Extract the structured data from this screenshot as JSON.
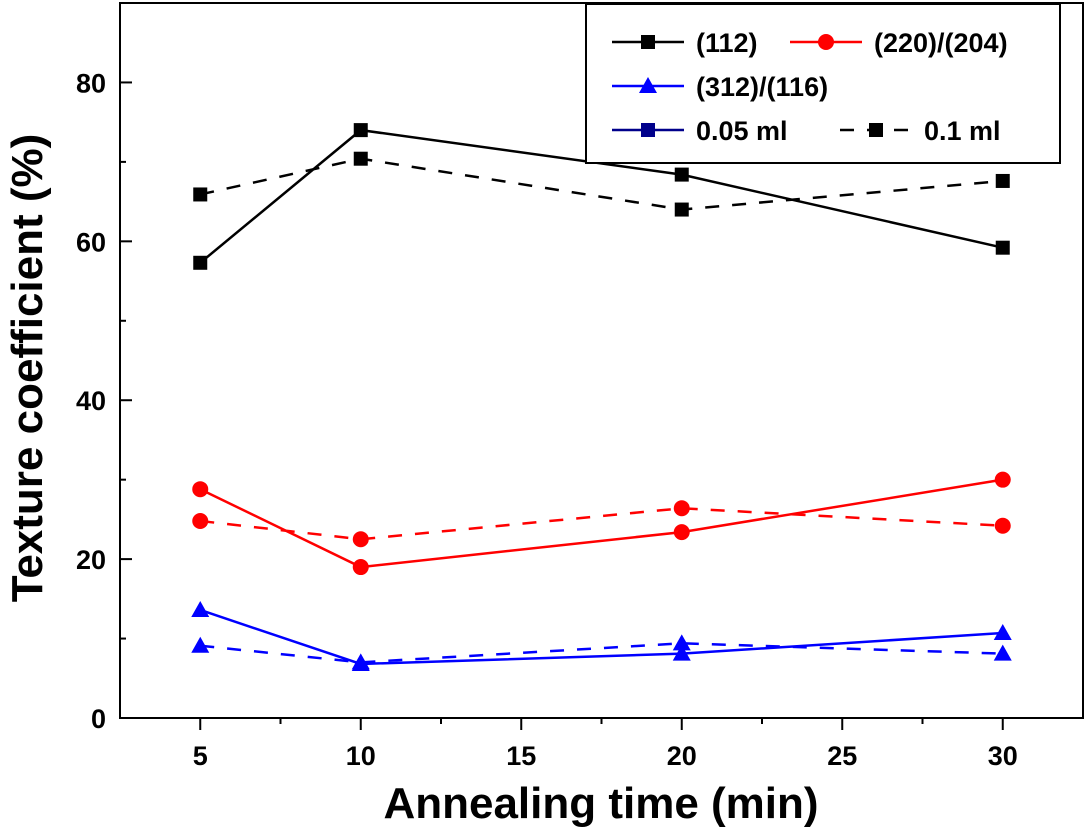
{
  "chart_data": {
    "type": "line",
    "xlabel": "Annealing time (min)",
    "ylabel": "Texture coefficient (%)",
    "xlim": [
      2.5,
      32.5
    ],
    "ylim": [
      0,
      90
    ],
    "xticks": [
      5,
      10,
      15,
      20,
      25,
      30
    ],
    "yticks": [
      0,
      20,
      40,
      60,
      80
    ],
    "x": [
      5,
      10,
      20,
      30
    ],
    "grid": false,
    "legend_position": "top-right",
    "series": [
      {
        "name": "(112)",
        "group": "0.05 ml",
        "color": "#000000",
        "marker": "square",
        "dash": "solid",
        "values": [
          57.3,
          74.0,
          68.4,
          59.2
        ]
      },
      {
        "name": "(112)",
        "group": "0.1 ml",
        "color": "#000000",
        "marker": "square",
        "dash": "dashed",
        "values": [
          65.9,
          70.4,
          64.0,
          67.6
        ]
      },
      {
        "name": "(220)/(204)",
        "group": "0.05 ml",
        "color": "#ff0000",
        "marker": "circle",
        "dash": "solid",
        "values": [
          28.8,
          19.0,
          23.4,
          30.0
        ]
      },
      {
        "name": "(220)/(204)",
        "group": "0.1 ml",
        "color": "#ff0000",
        "marker": "circle",
        "dash": "dashed",
        "values": [
          24.8,
          22.5,
          26.4,
          24.2
        ]
      },
      {
        "name": "(312)/(116)",
        "group": "0.05 ml",
        "color": "#0000ff",
        "marker": "triangle",
        "dash": "solid",
        "values": [
          13.6,
          6.8,
          8.1,
          10.7
        ]
      },
      {
        "name": "(312)/(116)",
        "group": "0.1 ml",
        "color": "#0000ff",
        "marker": "triangle",
        "dash": "dashed",
        "values": [
          9.1,
          7.0,
          9.4,
          8.1
        ]
      }
    ],
    "legend": [
      {
        "label": "(112)",
        "color": "#000000",
        "marker": "square",
        "dash": "solid"
      },
      {
        "label": "(220)/(204)",
        "color": "#ff0000",
        "marker": "circle",
        "dash": "solid"
      },
      {
        "label": "(312)/(116)",
        "color": "#0000ff",
        "marker": "triangle",
        "dash": "solid"
      },
      {
        "label": "0.05 ml",
        "color": "#00008b",
        "marker": "square",
        "dash": "solid"
      },
      {
        "label": "0.1 ml",
        "color": "#000000",
        "marker": "square",
        "dash": "dashed"
      }
    ]
  }
}
